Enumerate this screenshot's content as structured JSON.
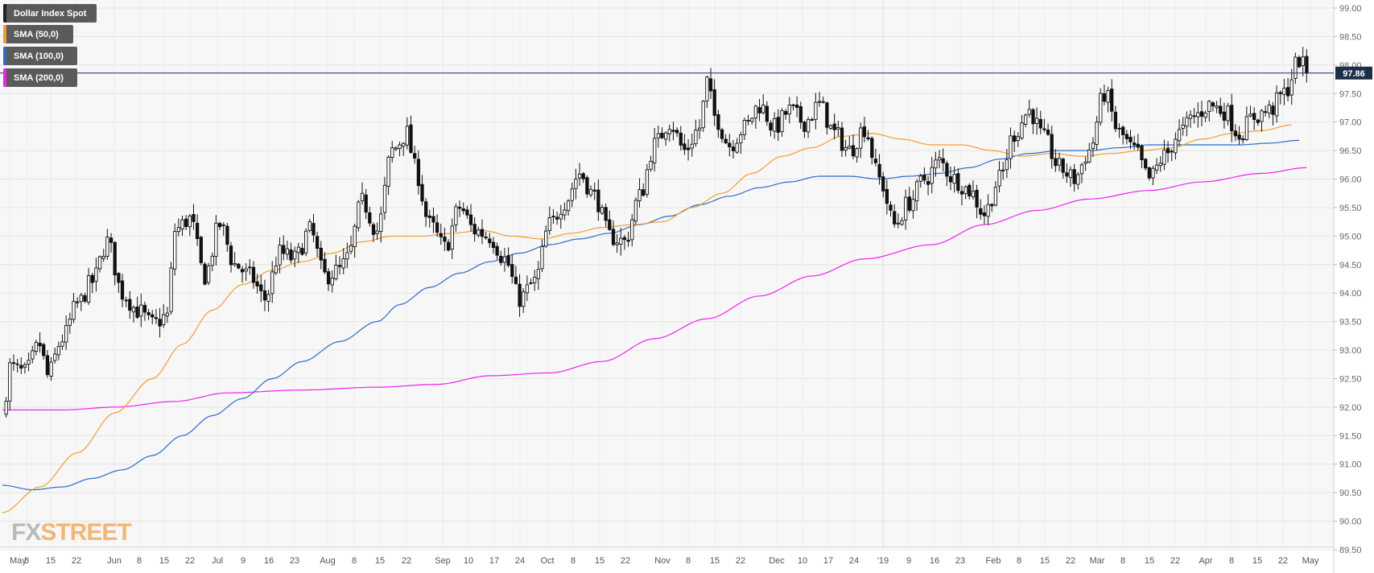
{
  "watermark": {
    "fx": "FX",
    "street": "STREET"
  },
  "chart_data": {
    "type": "candlestick",
    "last_price_label": "97.86",
    "last_price": 97.86,
    "y_ticks": [
      89.5,
      90.0,
      90.5,
      91.0,
      91.5,
      92.0,
      92.5,
      93.0,
      93.5,
      94.0,
      94.5,
      95.0,
      95.5,
      96.0,
      96.5,
      97.0,
      97.5,
      98.0,
      98.5,
      99.0
    ],
    "x_ticks": [
      "May",
      "8",
      "15",
      "22",
      "Jun",
      "8",
      "15",
      "22",
      "Jul",
      "9",
      "16",
      "23",
      "Aug",
      "8",
      "15",
      "22",
      "Sep",
      "10",
      "17",
      "24",
      "Oct",
      "8",
      "15",
      "22",
      "Nov",
      "8",
      "15",
      "22",
      "Dec",
      "10",
      "17",
      "24",
      "'19",
      "9",
      "16",
      "23",
      "Feb",
      "8",
      "15",
      "22",
      "Mar",
      "8",
      "15",
      "22",
      "Apr",
      "8",
      "15",
      "22",
      "May"
    ],
    "legend": [
      {
        "name": "Dollar Index Spot",
        "color": "#222222"
      },
      {
        "name": "SMA (50,0)",
        "color": "#f39c32"
      },
      {
        "name": "SMA (100,0)",
        "color": "#2b6cc4"
      },
      {
        "name": "SMA (200,0)",
        "color": "#ee22ee"
      }
    ],
    "close_anchors": [
      [
        0,
        91.85
      ],
      [
        2,
        92.7
      ],
      [
        6,
        92.6
      ],
      [
        10,
        93.1
      ],
      [
        12,
        92.55
      ],
      [
        16,
        93.2
      ],
      [
        20,
        93.8
      ],
      [
        24,
        94.2
      ],
      [
        28,
        94.9
      ],
      [
        32,
        94.0
      ],
      [
        36,
        93.7
      ],
      [
        40,
        93.45
      ],
      [
        44,
        93.6
      ],
      [
        46,
        95.1
      ],
      [
        50,
        95.3
      ],
      [
        54,
        94.3
      ],
      [
        58,
        95.2
      ],
      [
        62,
        94.5
      ],
      [
        66,
        94.3
      ],
      [
        70,
        93.9
      ],
      [
        74,
        94.7
      ],
      [
        78,
        94.6
      ],
      [
        82,
        95.1
      ],
      [
        86,
        94.3
      ],
      [
        90,
        94.4
      ],
      [
        92,
        94.6
      ],
      [
        96,
        95.6
      ],
      [
        100,
        95.1
      ],
      [
        104,
        96.5
      ],
      [
        108,
        96.8
      ],
      [
        110,
        96.2
      ],
      [
        114,
        95.2
      ],
      [
        118,
        94.8
      ],
      [
        122,
        95.5
      ],
      [
        126,
        95.1
      ],
      [
        130,
        95.0
      ],
      [
        134,
        94.6
      ],
      [
        138,
        93.9
      ],
      [
        142,
        94.2
      ],
      [
        146,
        95.2
      ],
      [
        150,
        95.6
      ],
      [
        154,
        96.1
      ],
      [
        158,
        95.7
      ],
      [
        162,
        95.0
      ],
      [
        166,
        94.9
      ],
      [
        170,
        95.7
      ],
      [
        174,
        96.6
      ],
      [
        178,
        97.0
      ],
      [
        182,
        96.5
      ],
      [
        186,
        96.9
      ],
      [
        188,
        97.7
      ],
      [
        190,
        97.1
      ],
      [
        194,
        96.6
      ],
      [
        198,
        96.9
      ],
      [
        202,
        97.3
      ],
      [
        206,
        96.9
      ],
      [
        210,
        97.2
      ],
      [
        214,
        97.0
      ],
      [
        218,
        97.3
      ],
      [
        222,
        96.8
      ],
      [
        226,
        96.5
      ],
      [
        230,
        96.9
      ],
      [
        234,
        96.0
      ],
      [
        238,
        95.2
      ],
      [
        242,
        95.6
      ],
      [
        246,
        96.0
      ],
      [
        250,
        96.3
      ],
      [
        254,
        96.0
      ],
      [
        258,
        95.8
      ],
      [
        262,
        95.4
      ],
      [
        266,
        96.0
      ],
      [
        270,
        96.8
      ],
      [
        274,
        97.2
      ],
      [
        278,
        96.7
      ],
      [
        282,
        96.2
      ],
      [
        286,
        96.0
      ],
      [
        290,
        96.5
      ],
      [
        294,
        97.5
      ],
      [
        298,
        96.8
      ],
      [
        302,
        96.5
      ],
      [
        306,
        96.0
      ],
      [
        310,
        96.4
      ],
      [
        314,
        96.8
      ],
      [
        318,
        97.1
      ],
      [
        322,
        97.3
      ],
      [
        326,
        97.2
      ],
      [
        330,
        96.8
      ],
      [
        334,
        97.1
      ],
      [
        338,
        97.2
      ],
      [
        342,
        97.5
      ],
      [
        346,
        98.1
      ],
      [
        348,
        97.86
      ]
    ],
    "sma50_anchors": [
      [
        0,
        90.15
      ],
      [
        10,
        90.6
      ],
      [
        20,
        91.2
      ],
      [
        30,
        91.9
      ],
      [
        40,
        92.5
      ],
      [
        48,
        93.1
      ],
      [
        56,
        93.7
      ],
      [
        64,
        94.15
      ],
      [
        72,
        94.4
      ],
      [
        80,
        94.55
      ],
      [
        88,
        94.7
      ],
      [
        96,
        94.9
      ],
      [
        104,
        95.0
      ],
      [
        112,
        95.0
      ],
      [
        120,
        95.05
      ],
      [
        128,
        95.1
      ],
      [
        136,
        95.0
      ],
      [
        144,
        94.95
      ],
      [
        152,
        95.05
      ],
      [
        160,
        95.15
      ],
      [
        168,
        95.2
      ],
      [
        176,
        95.25
      ],
      [
        184,
        95.5
      ],
      [
        192,
        95.75
      ],
      [
        200,
        96.1
      ],
      [
        208,
        96.4
      ],
      [
        216,
        96.55
      ],
      [
        224,
        96.75
      ],
      [
        232,
        96.8
      ],
      [
        240,
        96.7
      ],
      [
        248,
        96.6
      ],
      [
        256,
        96.6
      ],
      [
        264,
        96.5
      ],
      [
        272,
        96.4
      ],
      [
        280,
        96.45
      ],
      [
        288,
        96.4
      ],
      [
        296,
        96.45
      ],
      [
        304,
        96.5
      ],
      [
        312,
        96.55
      ],
      [
        320,
        96.7
      ],
      [
        328,
        96.8
      ],
      [
        336,
        96.85
      ],
      [
        344,
        96.95
      ]
    ],
    "sma100_anchors": [
      [
        0,
        90.63
      ],
      [
        8,
        90.55
      ],
      [
        16,
        90.6
      ],
      [
        24,
        90.75
      ],
      [
        32,
        90.9
      ],
      [
        40,
        91.15
      ],
      [
        48,
        91.5
      ],
      [
        56,
        91.85
      ],
      [
        64,
        92.15
      ],
      [
        72,
        92.5
      ],
      [
        80,
        92.8
      ],
      [
        90,
        93.15
      ],
      [
        100,
        93.5
      ],
      [
        106,
        93.8
      ],
      [
        114,
        94.1
      ],
      [
        122,
        94.35
      ],
      [
        130,
        94.55
      ],
      [
        138,
        94.7
      ],
      [
        146,
        94.85
      ],
      [
        154,
        94.95
      ],
      [
        162,
        95.05
      ],
      [
        170,
        95.2
      ],
      [
        178,
        95.35
      ],
      [
        186,
        95.55
      ],
      [
        194,
        95.7
      ],
      [
        202,
        95.85
      ],
      [
        210,
        95.95
      ],
      [
        218,
        96.05
      ],
      [
        226,
        96.05
      ],
      [
        234,
        96.0
      ],
      [
        242,
        96.05
      ],
      [
        250,
        96.1
      ],
      [
        258,
        96.2
      ],
      [
        266,
        96.35
      ],
      [
        274,
        96.45
      ],
      [
        282,
        96.5
      ],
      [
        290,
        96.5
      ],
      [
        298,
        96.55
      ],
      [
        306,
        96.6
      ],
      [
        314,
        96.6
      ],
      [
        322,
        96.6
      ],
      [
        330,
        96.6
      ],
      [
        338,
        96.63
      ],
      [
        346,
        96.68
      ]
    ],
    "sma200_anchors": [
      [
        0,
        91.95
      ],
      [
        16,
        91.95
      ],
      [
        30,
        92.0
      ],
      [
        46,
        92.1
      ],
      [
        60,
        92.25
      ],
      [
        80,
        92.3
      ],
      [
        100,
        92.35
      ],
      [
        116,
        92.4
      ],
      [
        130,
        92.55
      ],
      [
        146,
        92.6
      ],
      [
        160,
        92.8
      ],
      [
        174,
        93.2
      ],
      [
        188,
        93.55
      ],
      [
        202,
        93.95
      ],
      [
        216,
        94.3
      ],
      [
        230,
        94.6
      ],
      [
        248,
        94.85
      ],
      [
        262,
        95.2
      ],
      [
        276,
        95.45
      ],
      [
        290,
        95.65
      ],
      [
        306,
        95.8
      ],
      [
        320,
        95.95
      ],
      [
        336,
        96.1
      ],
      [
        348,
        96.2
      ]
    ]
  }
}
